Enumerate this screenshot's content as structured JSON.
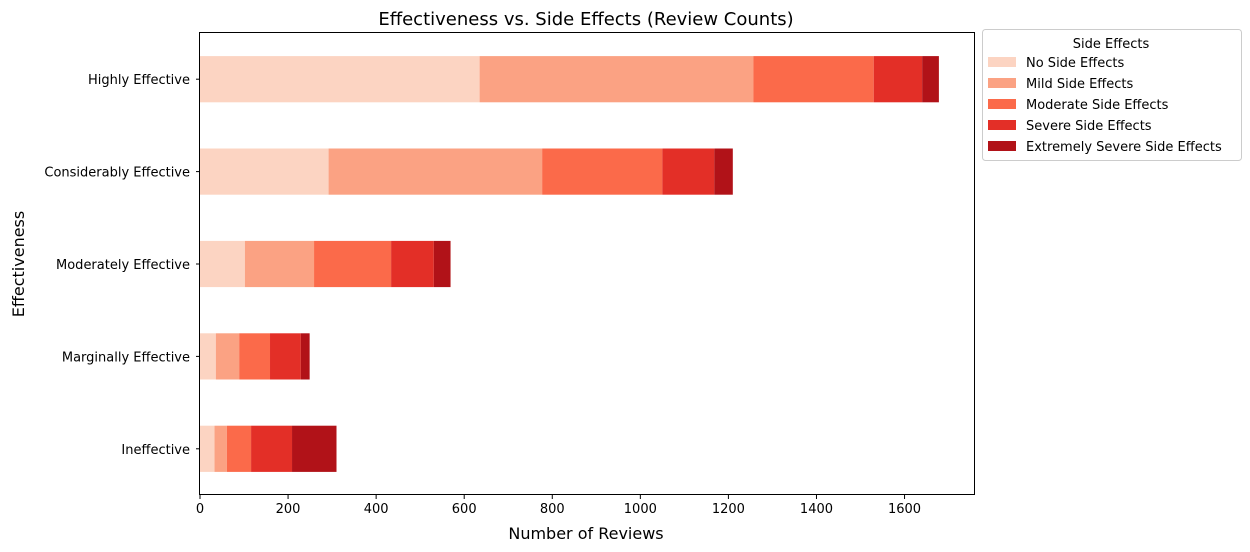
{
  "chart_data": {
    "type": "bar",
    "orientation": "horizontal",
    "stacked": true,
    "title": "Effectiveness vs. Side Effects (Review Counts)",
    "xlabel": "Number of Reviews",
    "ylabel": "Effectiveness",
    "xlim": [
      0,
      1760
    ],
    "xticks": [
      0,
      200,
      400,
      600,
      800,
      1000,
      1200,
      1400,
      1600
    ],
    "grid": false,
    "categories": [
      "Highly Effective",
      "Considerably Effective",
      "Moderately Effective",
      "Marginally Effective",
      "Ineffective"
    ],
    "legend": {
      "title": "Side Effects",
      "placement": "outside-top-right"
    },
    "series": [
      {
        "name": "No Side Effects",
        "color": "#fcd4c2",
        "values": [
          635,
          292,
          102,
          36,
          33
        ]
      },
      {
        "name": "Mild Side Effects",
        "color": "#fba283",
        "values": [
          622,
          485,
          157,
          53,
          28
        ]
      },
      {
        "name": "Moderate Side Effects",
        "color": "#fb6a4a",
        "values": [
          273,
          273,
          175,
          70,
          55
        ]
      },
      {
        "name": "Severe Side Effects",
        "color": "#e32f27",
        "values": [
          110,
          118,
          97,
          70,
          93
        ]
      },
      {
        "name": "Extremely Severe Side Effects",
        "color": "#b11218",
        "values": [
          38,
          42,
          38,
          20,
          101
        ]
      }
    ]
  }
}
